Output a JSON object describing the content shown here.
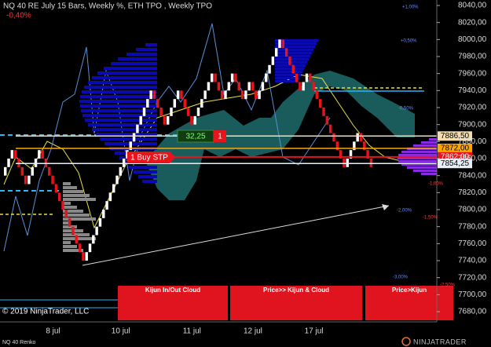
{
  "chart_data": {
    "type": "renko",
    "title": "NQ 40 RE July 15 Bars, Weekly %, ETH TPO , Weekly TPO",
    "subtitle": "-0,40%",
    "up_color": "#ffffff",
    "down_color": "#e8141b",
    "values": [
      7850,
      7860,
      7870,
      7860,
      7850,
      7840,
      7830,
      7840,
      7850,
      7860,
      7870,
      7860,
      7850,
      7840,
      7830,
      7820,
      7810,
      7800,
      7790,
      7780,
      7770,
      7760,
      7750,
      7740,
      7750,
      7760,
      7770,
      7780,
      7790,
      7800,
      7810,
      7820,
      7830,
      7840,
      7850,
      7860,
      7870,
      7880,
      7890,
      7900,
      7910,
      7920,
      7930,
      7940,
      7930,
      7920,
      7910,
      7900,
      7910,
      7920,
      7930,
      7940,
      7930,
      7920,
      7910,
      7900,
      7910,
      7920,
      7930,
      7940,
      7950,
      7960,
      7950,
      7940,
      7930,
      7940,
      7950,
      7960,
      7950,
      7940,
      7930,
      7940,
      7950,
      7940,
      7930,
      7940,
      7950,
      7960,
      7970,
      7980,
      7990,
      8000,
      7990,
      7980,
      7970,
      7960,
      7950,
      7940,
      7950,
      7960,
      7950,
      7940,
      7930,
      7920,
      7910,
      7900,
      7890,
      7880,
      7870,
      7860,
      7850,
      7860,
      7870,
      7880,
      7890,
      7880,
      7870,
      7860,
      7850
    ],
    "categories": [
      null,
      null,
      null,
      null,
      null,
      null,
      null,
      null,
      null,
      null,
      null,
      null,
      null,
      null,
      "8 jul",
      null,
      null,
      null,
      null,
      null,
      null,
      null,
      null,
      null,
      null,
      null,
      null,
      null,
      null,
      null,
      null,
      null,
      null,
      null,
      "10 jul",
      null,
      null,
      null,
      null,
      null,
      null,
      null,
      null,
      null,
      null,
      null,
      null,
      null,
      null,
      null,
      null,
      null,
      null,
      null,
      null,
      "11 jul",
      null,
      null,
      null,
      null,
      null,
      null,
      null,
      null,
      null,
      null,
      null,
      null,
      null,
      null,
      null,
      null,
      null,
      "12 jul",
      null,
      null,
      null,
      null,
      null,
      null,
      null,
      null,
      null,
      null,
      null,
      null,
      null,
      null,
      null,
      null,
      null,
      "17 jul",
      null,
      null,
      null,
      null,
      null,
      null,
      null,
      null,
      null,
      null,
      null,
      null,
      null,
      null,
      null,
      null,
      null
    ],
    "ylim": [
      7680,
      8040
    ],
    "yticks": [
      {
        "value": 7680,
        "label": "7680,00"
      },
      {
        "value": 7700,
        "label": "7700,00"
      },
      {
        "value": 7720,
        "label": "7720,00"
      },
      {
        "value": 7740,
        "label": "7740,00"
      },
      {
        "value": 7760,
        "label": "7760,00"
      },
      {
        "value": 7780,
        "label": "7780,00"
      },
      {
        "value": 7800,
        "label": "7800,00"
      },
      {
        "value": 7820,
        "label": "7820,00"
      },
      {
        "value": 7840,
        "label": "7840,00"
      },
      {
        "value": 7860,
        "label": "7860,00"
      },
      {
        "value": 7880,
        "label": "7880,00"
      },
      {
        "value": 7900,
        "label": "7900,00"
      },
      {
        "value": 7920,
        "label": "7920,00"
      },
      {
        "value": 7940,
        "label": "7940,00"
      },
      {
        "value": 7960,
        "label": "7960,00"
      },
      {
        "value": 7980,
        "label": "7980,00"
      },
      {
        "value": 8000,
        "label": "8000,00"
      },
      {
        "value": 8020,
        "label": "8020,00"
      },
      {
        "value": 8040,
        "label": "8040,00"
      }
    ],
    "price_markers": [
      {
        "value": 7886.5,
        "label": "7886,50",
        "color": "#f3dcb0",
        "text_color": "#000000"
      },
      {
        "value": 7872,
        "label": "7872,00",
        "color": "#ffa500",
        "text_color": "#000000"
      },
      {
        "value": 7862,
        "label": "7862,00",
        "color": "#e8141b",
        "text_color": "#ffffff"
      },
      {
        "value": 7854.25,
        "label": "7854,25",
        "color": "#e6eef8",
        "text_color": "#000000"
      }
    ],
    "annotations": [
      {
        "label": "+1,00%",
        "color": "#6a8cff"
      },
      {
        "label": "+0,50%",
        "color": "#6a8cff"
      },
      {
        "label": "-0,50%",
        "color": "#6a8cff"
      },
      {
        "label": "-1,00%",
        "color": "#ff4040"
      },
      {
        "label": "-1,50%",
        "color": "#ff4040"
      },
      {
        "label": "-2,00%",
        "color": "#6a8cff"
      },
      {
        "label": "-2,50%",
        "color": "#ff4040"
      },
      {
        "label": "-3,00%",
        "color": "#6a8cff"
      }
    ],
    "signals": {
      "profit": "32,25",
      "position": "1",
      "order": "1 Buy STP"
    },
    "panels": [
      "Kijun In/Out Cloud",
      "Price>> Kijun & Cloud",
      "Price>Kijun"
    ],
    "footer": {
      "copyright": "© 2019 NinjaTrader, LLC",
      "instrument": "NQ 40 Renko",
      "brand": "NINJATRADER"
    }
  }
}
